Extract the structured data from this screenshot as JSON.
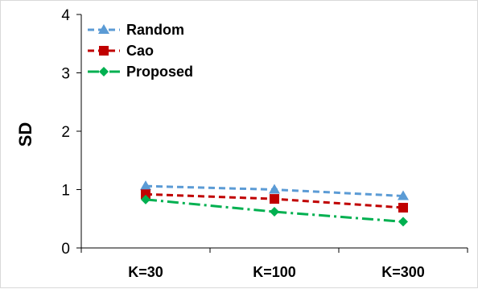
{
  "chart_data": {
    "type": "line",
    "categories": [
      "K=30",
      "K=100",
      "K=300"
    ],
    "ylabel": "SD",
    "ylim": [
      0,
      4
    ],
    "yticks": [
      0,
      1,
      2,
      3,
      4
    ],
    "grid": false,
    "legend_position": "top-left",
    "series": [
      {
        "name": "Random",
        "values": [
          1.06,
          1.0,
          0.89
        ],
        "color": "#5b9bd5",
        "marker": "triangle",
        "dash": "dashed"
      },
      {
        "name": "Cao",
        "values": [
          0.92,
          0.84,
          0.69
        ],
        "color": "#c00000",
        "marker": "square",
        "dash": "dashed"
      },
      {
        "name": "Proposed",
        "values": [
          0.83,
          0.62,
          0.45
        ],
        "color": "#00b050",
        "marker": "diamond",
        "dash": "dash-dot"
      }
    ]
  }
}
